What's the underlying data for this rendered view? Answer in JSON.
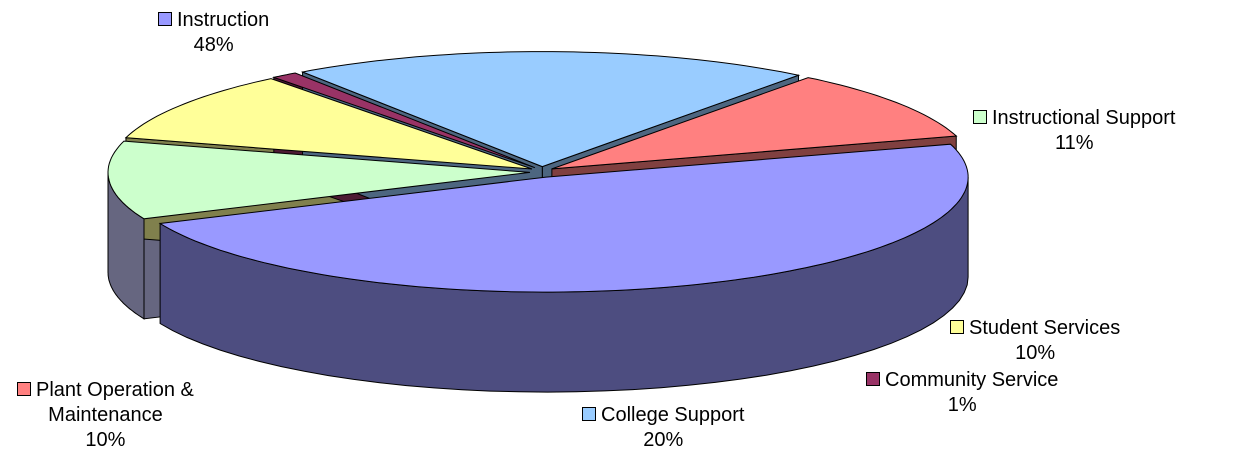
{
  "chart_data": {
    "type": "pie",
    "title": "",
    "categories": [
      "Instruction",
      "Instructional Support",
      "Student Services",
      "Community Service",
      "College Support",
      "Plant Operation & Maintenance"
    ],
    "values": [
      48,
      11,
      10,
      1,
      20,
      10
    ],
    "value_labels": [
      "48%",
      "11%",
      "10%",
      "1%",
      "20%",
      "10%"
    ],
    "exploded": true,
    "style_3d": true,
    "series": [
      {
        "name": "Instruction",
        "value": 48,
        "label": "48%",
        "color": "#9999FF",
        "side_color": "#4D4D80"
      },
      {
        "name": "Instructional Support",
        "value": 11,
        "label": "11%",
        "color": "#CCFFCC",
        "side_color": "#666680"
      },
      {
        "name": "Student Services",
        "value": 10,
        "label": "10%",
        "color": "#FFFF99",
        "side_color": "#80804D"
      },
      {
        "name": "Community Service",
        "value": 1,
        "label": "1%",
        "color": "#993366",
        "side_color": "#4D1A33"
      },
      {
        "name": "College Support",
        "value": 20,
        "label": "20%",
        "color": "#99CCFF",
        "side_color": "#4D6680"
      },
      {
        "name": "Plant Operation & Maintenance",
        "value": 10,
        "label": "10%",
        "color": "#FF8080",
        "side_color": "#804040"
      }
    ]
  },
  "labels": {
    "instruction": {
      "name": "Instruction",
      "pct": "48%"
    },
    "instructional_support": {
      "name": "Instructional Support",
      "pct": "11%"
    },
    "student_services": {
      "name": "Student Services",
      "pct": "10%"
    },
    "community_service": {
      "name": "Community Service",
      "pct": "1%"
    },
    "college_support": {
      "name": "College Support",
      "pct": "20%"
    },
    "plant_operation": {
      "name_line1": "Plant Operation &",
      "name_line2": "Maintenance",
      "pct": "10%"
    }
  }
}
